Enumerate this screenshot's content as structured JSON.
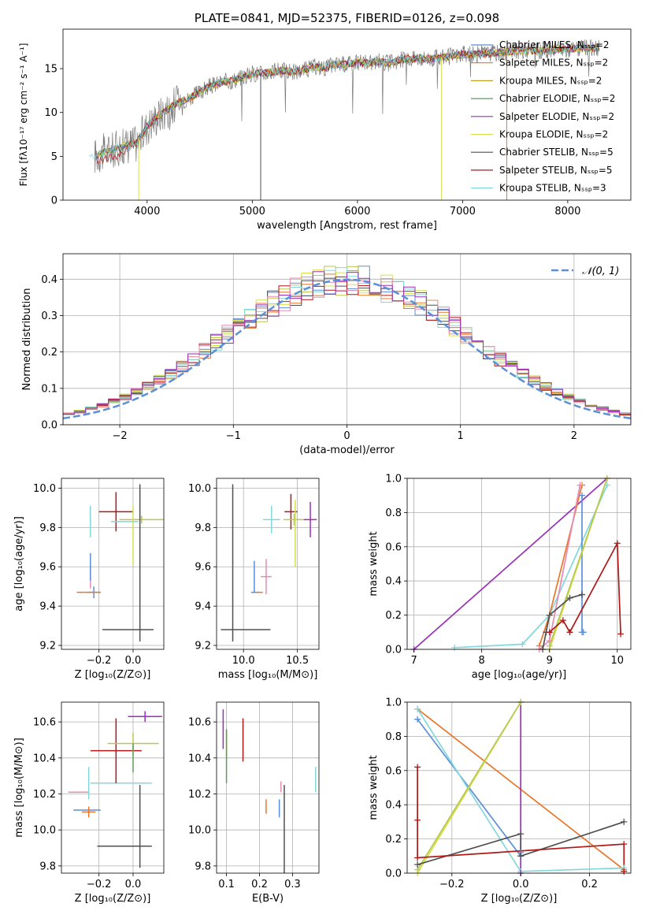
{
  "colors": {
    "chabrier_miles": "#5b8fd6",
    "salpeter_miles": "#e8772a",
    "kroupa_miles": "#c8a020",
    "chabrier_elodie": "#5a9e5a",
    "salpeter_elodie": "#9b2fb8",
    "kroupa_elodie": "#d4e04a",
    "chabrier_stelib": "#505050",
    "salpeter_stelib": "#b01818",
    "kroupa_stelib": "#80d8dc",
    "gaussian": "#5b8fd6",
    "pink": "#e88ab0",
    "olive": "#b8c84a"
  },
  "chart_data": [
    {
      "type": "line",
      "panel": "spectrum",
      "title": "PLATE=0841, MJD=52375, FIBERID=0126, z=0.098",
      "xlabel": "wavelength [Angstrom, rest frame]",
      "ylabel": "Flux [fλ10⁻¹⁷ erg cm⁻² s⁻¹ A⁻¹]",
      "xlim": [
        3200,
        8600
      ],
      "ylim": [
        0,
        19.5
      ],
      "xticks": [
        4000,
        5000,
        6000,
        7000,
        8000
      ],
      "yticks": [
        0,
        5,
        10,
        15
      ],
      "legend_position": "right",
      "legend": [
        "Chabrier MILES, Nₛₛₚ=2",
        "Salpeter MILES, Nₛₛₚ=2",
        "Kroupa MILES, Nₛₛₚ=2",
        "Chabrier ELODIE, Nₛₛₚ=2",
        "Salpeter ELODIE, Nₛₛₚ=2",
        "Kroupa ELODIE, Nₛₛₚ=2",
        "Chabrier STELIB, Nₛₛₚ=5",
        "Salpeter STELIB, Nₛₛₚ=5",
        "Kroupa STELIB, Nₛₛₚ=3"
      ],
      "continuum": {
        "x": [
          3500,
          3600,
          3700,
          3800,
          3900,
          4000,
          4100,
          4200,
          4300,
          4400,
          4500,
          4600,
          4700,
          4800,
          4900,
          5000,
          5100,
          5200,
          5300,
          5400,
          5500,
          5600,
          5700,
          5800,
          5900,
          6000,
          6100,
          6200,
          6300,
          6400,
          6500,
          6600,
          6700,
          6800,
          6900,
          7000,
          7100,
          7200,
          7300,
          7400,
          7500,
          7600,
          7700,
          7800,
          7900,
          8000,
          8100,
          8200,
          8300
        ],
        "y": [
          5.0,
          5.5,
          5.8,
          6.3,
          6.5,
          8.4,
          9.6,
          10.4,
          11.2,
          11.6,
          12.3,
          13.0,
          13.4,
          13.6,
          14.0,
          14.4,
          14.5,
          14.6,
          14.8,
          14.6,
          14.9,
          15.2,
          15.1,
          15.5,
          15.5,
          15.7,
          15.6,
          15.8,
          15.6,
          16.0,
          16.1,
          16.2,
          16.1,
          16.3,
          16.4,
          16.6,
          16.6,
          16.7,
          16.8,
          16.9,
          17.0,
          17.1,
          17.0,
          17.1,
          17.2,
          17.2,
          17.3,
          17.3,
          17.4
        ]
      }
    },
    {
      "type": "histogram",
      "panel": "residuals",
      "xlabel": "(data-model)/error",
      "ylabel": "Normed distribution",
      "xlim": [
        -2.5,
        2.5
      ],
      "ylim": [
        0,
        0.47
      ],
      "xticks": [
        -2,
        -1,
        0,
        1,
        2
      ],
      "yticks": [
        0.0,
        0.1,
        0.2,
        0.3,
        0.4
      ],
      "legend": [
        "𝒩(0, 1)"
      ],
      "legend_position": "upper right",
      "bins": [
        -2.5,
        -2.4,
        -2.3,
        -2.2,
        -2.1,
        -2.0,
        -1.9,
        -1.8,
        -1.7,
        -1.6,
        -1.5,
        -1.4,
        -1.3,
        -1.2,
        -1.1,
        -1.0,
        -0.9,
        -0.8,
        -0.7,
        -0.6,
        -0.5,
        -0.4,
        -0.3,
        -0.2,
        -0.1,
        0.0,
        0.1,
        0.2,
        0.3,
        0.4,
        0.5,
        0.6,
        0.7,
        0.8,
        0.9,
        1.0,
        1.1,
        1.2,
        1.3,
        1.4,
        1.5,
        1.6,
        1.7,
        1.8,
        1.9,
        2.0,
        2.1,
        2.2,
        2.3,
        2.4,
        2.5
      ],
      "gaussian": {
        "mean": 0,
        "sigma": 1
      }
    },
    {
      "type": "errorbar",
      "panel": "age_vs_Z",
      "xlabel": "Z [log₁₀(Z/Z⊙)]",
      "ylabel": "age  [log₁₀(age/yr)]",
      "xlim": [
        -0.42,
        0.18
      ],
      "ylim": [
        9.18,
        10.05
      ],
      "xticks": [
        -0.2,
        0.0
      ],
      "yticks": [
        9.2,
        9.4,
        9.6,
        9.8,
        10.0
      ],
      "points": [
        {
          "x": -0.23,
          "y": 9.47,
          "xerr": 0.04,
          "yerr": 0.03,
          "c": "chabrier_miles"
        },
        {
          "x": -0.26,
          "y": 9.47,
          "xerr": 0.07,
          "yerr": 0.0,
          "c": "salpeter_miles"
        },
        {
          "x": -0.25,
          "y": 9.55,
          "xerr": 0.0,
          "yerr": 0.06,
          "c": "pink"
        },
        {
          "x": -0.1,
          "y": 9.88,
          "xerr": 0.1,
          "yerr": 0.1,
          "c": "salpeter_stelib"
        },
        {
          "x": 0.05,
          "y": 9.84,
          "xerr": 0.13,
          "yerr": 0.02,
          "c": "olive"
        },
        {
          "x": 0.0,
          "y": 9.76,
          "xerr": 0.0,
          "yerr": 0.15,
          "c": "kroupa_elodie"
        },
        {
          "x": -0.05,
          "y": 9.83,
          "xerr": 0.08,
          "yerr": 0.0,
          "c": "kroupa_stelib"
        },
        {
          "x": -0.25,
          "y": 9.83,
          "xerr": 0.0,
          "yerr": 0.08,
          "c": "kroupa_stelib"
        },
        {
          "x": 0.04,
          "y": 9.62,
          "xerr": 0.0,
          "yerr": 0.4,
          "c": "chabrier_stelib"
        },
        {
          "x": -0.03,
          "y": 9.28,
          "xerr": 0.15,
          "yerr": 0.0,
          "c": "chabrier_stelib"
        },
        {
          "x": -0.25,
          "y": 9.6,
          "xerr": 0.0,
          "yerr": 0.07,
          "c": "chabrier_miles"
        }
      ]
    },
    {
      "type": "errorbar",
      "panel": "age_vs_mass",
      "xlabel": "mass [log₁₀(M/M⊙)]",
      "xlim": [
        9.75,
        10.7
      ],
      "ylim": [
        9.18,
        10.05
      ],
      "xticks": [
        10.0,
        10.5
      ],
      "yticks": [
        9.2,
        9.4,
        9.6,
        9.8,
        10.0
      ],
      "points": [
        {
          "x": 10.11,
          "y": 9.47,
          "xerr": 0.04,
          "yerr": 0.0,
          "c": "chabrier_miles"
        },
        {
          "x": 10.1,
          "y": 9.55,
          "xerr": 0.0,
          "yerr": 0.08,
          "c": "chabrier_miles"
        },
        {
          "x": 10.15,
          "y": 9.47,
          "xerr": 0.0,
          "yerr": 0.0,
          "c": "salpeter_miles"
        },
        {
          "x": 10.21,
          "y": 9.55,
          "xerr": 0.05,
          "yerr": 0.09,
          "c": "pink"
        },
        {
          "x": 10.44,
          "y": 9.88,
          "xerr": 0.06,
          "yerr": 0.09,
          "c": "salpeter_stelib"
        },
        {
          "x": 10.47,
          "y": 9.84,
          "xerr": 0.1,
          "yerr": 0.03,
          "c": "olive"
        },
        {
          "x": 10.48,
          "y": 9.77,
          "xerr": 0.0,
          "yerr": 0.17,
          "c": "kroupa_elodie"
        },
        {
          "x": 10.62,
          "y": 9.84,
          "xerr": 0.06,
          "yerr": 0.09,
          "c": "salpeter_elodie"
        },
        {
          "x": 10.26,
          "y": 9.84,
          "xerr": 0.08,
          "yerr": 0.07,
          "c": "kroupa_stelib"
        },
        {
          "x": 9.9,
          "y": 9.62,
          "xerr": 0.0,
          "yerr": 0.4,
          "c": "chabrier_stelib"
        },
        {
          "x": 10.02,
          "y": 9.28,
          "xerr": 0.23,
          "yerr": 0.0,
          "c": "chabrier_stelib"
        }
      ]
    },
    {
      "type": "line",
      "panel": "mass_weight_vs_age",
      "xlabel": "age  [log₁₀(age/yr)]",
      "ylabel": "mass weight",
      "xlim": [
        6.9,
        10.2
      ],
      "ylim": [
        0,
        1.0
      ],
      "xticks": [
        7,
        8,
        9,
        10
      ],
      "yticks": [
        0.0,
        0.2,
        0.4,
        0.6,
        0.8,
        1.0
      ],
      "series": [
        {
          "c": "salpeter_elodie",
          "x": [
            7.0,
            9.85
          ],
          "y": [
            0.0,
            1.0
          ]
        },
        {
          "c": "kroupa_stelib",
          "x": [
            7.6,
            8.6,
            9.0,
            9.85
          ],
          "y": [
            0.01,
            0.03,
            0.2,
            0.96
          ]
        },
        {
          "c": "chabrier_miles",
          "x": [
            9.48,
            9.48,
            9.5
          ],
          "y": [
            0.9,
            0.1,
            0.1
          ]
        },
        {
          "c": "salpeter_miles",
          "x": [
            8.85,
            9.0,
            9.48
          ],
          "y": [
            0.02,
            0.2,
            0.96
          ]
        },
        {
          "c": "pink",
          "x": [
            8.85,
            9.0,
            9.45
          ],
          "y": [
            0.0,
            0.05,
            0.96
          ]
        },
        {
          "c": "kroupa_elodie",
          "x": [
            9.0,
            9.85
          ],
          "y": [
            0.0,
            1.0
          ]
        },
        {
          "c": "olive",
          "x": [
            9.0,
            9.85
          ],
          "y": [
            0.02,
            1.0
          ]
        },
        {
          "c": "chabrier_stelib",
          "x": [
            8.9,
            8.95,
            9.0,
            9.3,
            9.48
          ],
          "y": [
            0.0,
            0.1,
            0.2,
            0.3,
            0.32
          ]
        },
        {
          "c": "salpeter_stelib",
          "x": [
            9.0,
            9.2,
            9.3,
            10.0,
            10.05
          ],
          "y": [
            0.1,
            0.17,
            0.1,
            0.62,
            0.09
          ]
        }
      ]
    },
    {
      "type": "errorbar",
      "panel": "mass_vs_Z",
      "xlabel": "Z [log₁₀(Z/Z⊙)]",
      "ylabel": "mass [log₁₀(M/M⊙)]",
      "xlim": [
        -0.42,
        0.18
      ],
      "ylim": [
        9.76,
        10.71
      ],
      "xticks": [
        -0.2,
        0.0
      ],
      "yticks": [
        9.8,
        10.0,
        10.2,
        10.4,
        10.6
      ],
      "points": [
        {
          "x": -0.27,
          "y": 10.11,
          "xerr": 0.08,
          "yerr": 0.0,
          "c": "chabrier_miles"
        },
        {
          "x": -0.26,
          "y": 10.1,
          "xerr": 0.04,
          "yerr": 0.03,
          "c": "salpeter_miles"
        },
        {
          "x": -0.32,
          "y": 10.21,
          "xerr": 0.06,
          "yerr": 0.0,
          "c": "pink"
        },
        {
          "x": -0.26,
          "y": 10.26,
          "xerr": 0.0,
          "yerr": 0.09,
          "c": "kroupa_stelib"
        },
        {
          "x": -0.07,
          "y": 10.26,
          "xerr": 0.18,
          "yerr": 0.0,
          "c": "kroupa_stelib"
        },
        {
          "x": -0.1,
          "y": 10.44,
          "xerr": 0.15,
          "yerr": 0.18,
          "c": "salpeter_stelib"
        },
        {
          "x": 0.0,
          "y": 10.48,
          "xerr": 0.15,
          "yerr": 0.06,
          "c": "olive"
        },
        {
          "x": 0.0,
          "y": 10.4,
          "xerr": 0.0,
          "yerr": 0.08,
          "c": "chabrier_elodie"
        },
        {
          "x": 0.07,
          "y": 10.63,
          "xerr": 0.1,
          "yerr": 0.03,
          "c": "salpeter_elodie"
        },
        {
          "x": 0.04,
          "y": 10.02,
          "xerr": 0.0,
          "yerr": 0.23,
          "c": "chabrier_stelib"
        },
        {
          "x": -0.05,
          "y": 9.91,
          "xerr": 0.16,
          "yerr": 0.0,
          "c": "chabrier_stelib"
        }
      ]
    },
    {
      "type": "errorbar",
      "panel": "mass_vs_ebv",
      "xlabel": "E(B-V)",
      "xlim": [
        0.07,
        0.38
      ],
      "ylim": [
        9.76,
        10.71
      ],
      "xticks": [
        0.1,
        0.2,
        0.3
      ],
      "yticks": [
        9.8,
        10.0,
        10.2,
        10.4,
        10.6
      ],
      "points": [
        {
          "x": 0.09,
          "y": 10.56,
          "xerr": 0.0,
          "yerr": 0.11,
          "c": "salpeter_elodie"
        },
        {
          "x": 0.1,
          "y": 10.48,
          "xerr": 0.0,
          "yerr": 0.08,
          "c": "olive"
        },
        {
          "x": 0.1,
          "y": 10.41,
          "xerr": 0.0,
          "yerr": 0.15,
          "c": "chabrier_elodie"
        },
        {
          "x": 0.15,
          "y": 10.5,
          "xerr": 0.0,
          "yerr": 0.12,
          "c": "salpeter_stelib"
        },
        {
          "x": 0.22,
          "y": 10.13,
          "xerr": 0.0,
          "yerr": 0.04,
          "c": "salpeter_miles"
        },
        {
          "x": 0.26,
          "y": 10.12,
          "xerr": 0.0,
          "yerr": 0.05,
          "c": "chabrier_miles"
        },
        {
          "x": 0.265,
          "y": 10.24,
          "xerr": 0.0,
          "yerr": 0.03,
          "c": "pink"
        },
        {
          "x": 0.275,
          "y": 10.0,
          "xerr": 0.0,
          "yerr": 0.25,
          "c": "chabrier_stelib"
        },
        {
          "x": 0.37,
          "y": 10.28,
          "xerr": 0.0,
          "yerr": 0.07,
          "c": "kroupa_stelib"
        }
      ]
    },
    {
      "type": "line",
      "panel": "mass_weight_vs_Z",
      "xlabel": "Z [log₁₀(Z/Z⊙)]",
      "ylabel": "mass weight",
      "xlim": [
        -0.33,
        0.32
      ],
      "ylim": [
        0,
        1.0
      ],
      "xticks": [
        -0.2,
        0.0,
        0.2
      ],
      "yticks": [
        0.0,
        0.2,
        0.4,
        0.6,
        0.8,
        1.0
      ],
      "series": [
        {
          "c": "salpeter_miles",
          "x": [
            -0.3,
            0.3
          ],
          "y": [
            0.96,
            0.02
          ]
        },
        {
          "c": "chabrier_miles",
          "x": [
            -0.3,
            0.0,
            0.0
          ],
          "y": [
            0.9,
            0.1,
            0.12
          ]
        },
        {
          "c": "kroupa_stelib",
          "x": [
            -0.3,
            0.0,
            0.3
          ],
          "y": [
            0.96,
            0.01,
            0.03
          ]
        },
        {
          "c": "salpeter_elodie",
          "x": [
            0.0,
            0.0
          ],
          "y": [
            0.0,
            1.0
          ]
        },
        {
          "c": "kroupa_elodie",
          "x": [
            -0.3,
            0.0
          ],
          "y": [
            0.0,
            1.0
          ]
        },
        {
          "c": "olive",
          "x": [
            -0.3,
            0.0
          ],
          "y": [
            0.02,
            1.0
          ]
        },
        {
          "c": "chabrier_stelib",
          "x": [
            -0.3,
            0.0,
            0.0,
            0.3
          ],
          "y": [
            0.05,
            0.23,
            0.1,
            0.3
          ]
        },
        {
          "c": "salpeter_stelib",
          "x": [
            -0.3,
            -0.3,
            -0.3,
            0.3,
            0.3
          ],
          "y": [
            0.62,
            0.31,
            0.09,
            0.17,
            0.01
          ]
        }
      ]
    }
  ]
}
